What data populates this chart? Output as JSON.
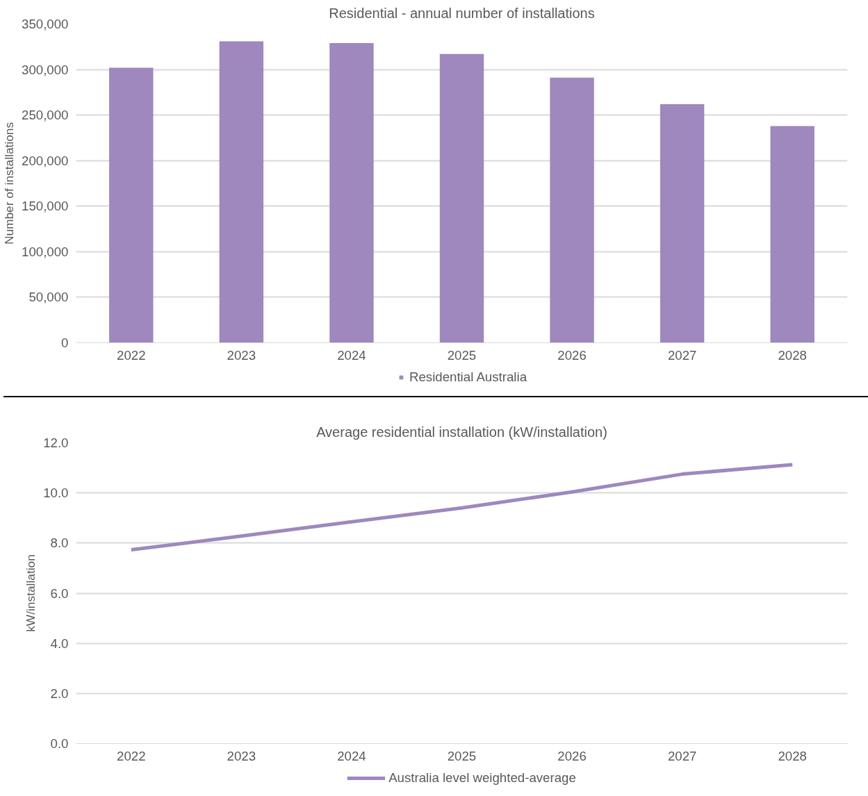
{
  "chart_data": [
    {
      "type": "bar",
      "title": "Residential - annual number of installations",
      "ylabel": "Number of installations",
      "categories": [
        "2022",
        "2023",
        "2024",
        "2025",
        "2026",
        "2027",
        "2028"
      ],
      "series": [
        {
          "name": "Residential Australia",
          "color": "#9e88be",
          "values": [
            302000,
            331000,
            329000,
            317000,
            291000,
            262000,
            238000
          ]
        }
      ],
      "ylim": [
        0,
        350000
      ],
      "yticks": [
        {
          "value": 0,
          "label": "0"
        },
        {
          "value": 50000,
          "label": "50,000"
        },
        {
          "value": 100000,
          "label": "100,000"
        },
        {
          "value": 150000,
          "label": "150,000"
        },
        {
          "value": 200000,
          "label": "200,000"
        },
        {
          "value": 250000,
          "label": "250,000"
        },
        {
          "value": 300000,
          "label": "300,000"
        },
        {
          "value": 350000,
          "label": "350,000"
        }
      ],
      "grid": "y",
      "legend": "bottom"
    },
    {
      "type": "line",
      "title": "Average residential installation (kW/installation)",
      "ylabel": "kW/installation",
      "categories": [
        "2022",
        "2023",
        "2024",
        "2025",
        "2026",
        "2027",
        "2028"
      ],
      "series": [
        {
          "name": "Australia level weighted-average",
          "color": "#9e88be",
          "values": [
            7.73,
            8.28,
            8.85,
            9.4,
            10.04,
            10.75,
            11.13
          ]
        }
      ],
      "ylim": [
        0,
        12
      ],
      "yticks": [
        {
          "value": 0,
          "label": "0.0"
        },
        {
          "value": 2,
          "label": "2.0"
        },
        {
          "value": 4,
          "label": "4.0"
        },
        {
          "value": 6,
          "label": "6.0"
        },
        {
          "value": 8,
          "label": "8.0"
        },
        {
          "value": 10,
          "label": "10.0"
        },
        {
          "value": 12,
          "label": "12.0"
        }
      ],
      "grid": "y",
      "legend": "bottom",
      "marker": "none",
      "line_style": "solid"
    }
  ]
}
